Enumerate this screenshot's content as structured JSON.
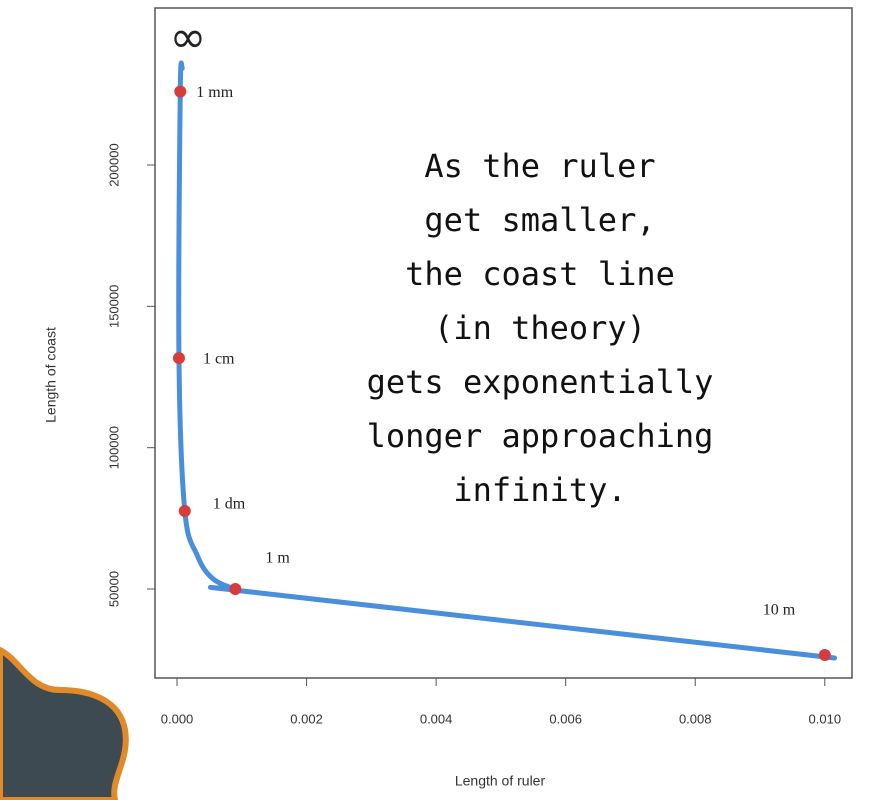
{
  "chart_data": {
    "type": "line",
    "symbol": "∞",
    "xlabel": "Length of ruler",
    "ylabel": "Length of coast",
    "annotation": [
      "As the ruler",
      "get smaller,",
      "the coast line",
      "(in theory)",
      "gets exponentially",
      "longer approaching",
      "infinity."
    ],
    "xlim": [
      -0.00034,
      0.01042
    ],
    "ylim": [
      18520,
      255540
    ],
    "xticks": [
      {
        "value": 0,
        "label": "0.000"
      },
      {
        "value": 0.002,
        "label": "0.002"
      },
      {
        "value": 0.004,
        "label": "0.004"
      },
      {
        "value": 0.006,
        "label": "0.006"
      },
      {
        "value": 0.008,
        "label": "0.008"
      },
      {
        "value": 0.01,
        "label": "0.010"
      }
    ],
    "yticks": [
      50000,
      100000,
      150000,
      200000
    ],
    "series": [
      {
        "color": "#4a8fdb",
        "x": [
          8e-05,
          5e-05,
          3e-05,
          0.00012,
          0.00031,
          0.00054,
          0.0009,
          0.00128,
          0.01015
        ],
        "values": [
          234300,
          226000,
          131700,
          77600,
          62000,
          53900,
          50000,
          48600,
          25600
        ]
      },
      {
        "color": "#d63c3c",
        "labels": [
          "1 mm",
          "1 cm",
          "1 dm",
          "1 m",
          "10 m"
        ],
        "x": [
          5e-05,
          3e-05,
          0.00012,
          0.0009,
          0.01
        ],
        "values": [
          226000,
          131700,
          77600,
          50000,
          26650
        ]
      }
    ]
  }
}
